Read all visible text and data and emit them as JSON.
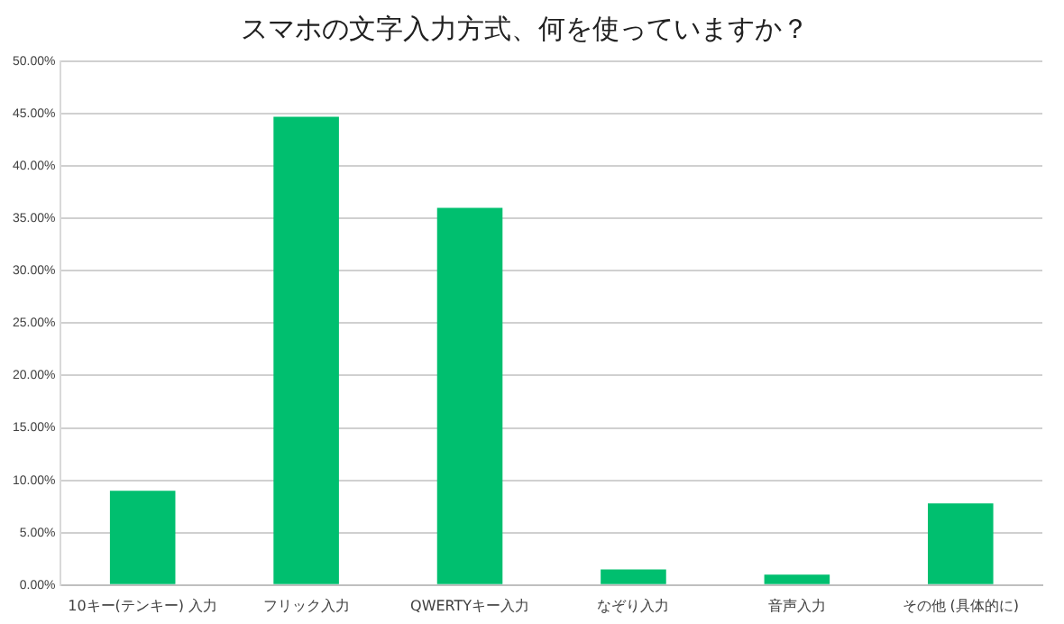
{
  "chart_data": {
    "type": "bar",
    "title": "スマホの文字入力方式、何を使っていますか？",
    "categories": [
      "10キー(テンキー) 入力",
      "フリック入力",
      "QWERTYキー入力",
      "なぞり入力",
      "音声入力",
      "その他 (具体的に)"
    ],
    "values": [
      9.0,
      44.7,
      36.0,
      1.5,
      1.0,
      7.8
    ],
    "color": "#00bf6f",
    "ylim": [
      0,
      50
    ],
    "yticks": [
      {
        "value": 0,
        "label": "0.00%"
      },
      {
        "value": 5,
        "label": "5.00%"
      },
      {
        "value": 10,
        "label": "10.00%"
      },
      {
        "value": 15,
        "label": "15.00%"
      },
      {
        "value": 20,
        "label": "20.00%"
      },
      {
        "value": 25,
        "label": "25.00%"
      },
      {
        "value": 30,
        "label": "30.00%"
      },
      {
        "value": 35,
        "label": "35.00%"
      },
      {
        "value": 40,
        "label": "40.00%"
      },
      {
        "value": 45,
        "label": "45.00%"
      },
      {
        "value": 50,
        "label": "50.00%"
      }
    ],
    "grid": "y",
    "legend": false
  }
}
